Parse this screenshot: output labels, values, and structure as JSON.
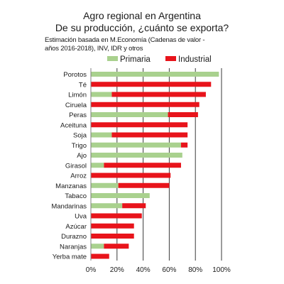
{
  "header": {
    "title_line1": "Agro regional en Argentina",
    "title_line2": "De su producción, ¿cuánto se exporta?",
    "subtitle_line1": "Estimación basada en M.Economía (Cadenas de valor -",
    "subtitle_line2": "años 2016-2018), INV, IDR y otros"
  },
  "legend": {
    "primaria_label": "Primaria",
    "industrial_label": "Industrial"
  },
  "colors": {
    "primaria": "#a9d18e",
    "industrial": "#e8141b",
    "gridline": "#3a3a3a",
    "axis": "#7f7f7f"
  },
  "chart_data": {
    "type": "bar",
    "orientation": "horizontal",
    "stacked": true,
    "categories": [
      "Porotos",
      "Té",
      "Limón",
      "Ciruela",
      "Peras",
      "Aceituna",
      "Soja",
      "Trigo",
      "Ajo",
      "Girasol",
      "Arroz",
      "Manzanas",
      "Tabaco",
      "Mandarinas",
      "Uva",
      "Azúcar",
      "Durazno",
      "Naranjas",
      "Yerba mate"
    ],
    "series": [
      {
        "name": "Primaria",
        "values": [
          98,
          0,
          16,
          0,
          59,
          0,
          16,
          69,
          70,
          10,
          0,
          21,
          45,
          24,
          0,
          0,
          0,
          10,
          0
        ]
      },
      {
        "name": "Industrial",
        "values": [
          0,
          92,
          72,
          83,
          23,
          74,
          58,
          5,
          0,
          59,
          61,
          39,
          0,
          18,
          39,
          33,
          33,
          19,
          14
        ]
      }
    ],
    "xlim": [
      0,
      100
    ],
    "xticks": [
      "0%",
      "20%",
      "40%",
      "60%",
      "80%",
      "100%"
    ],
    "grid": true,
    "legend_position": "top"
  }
}
